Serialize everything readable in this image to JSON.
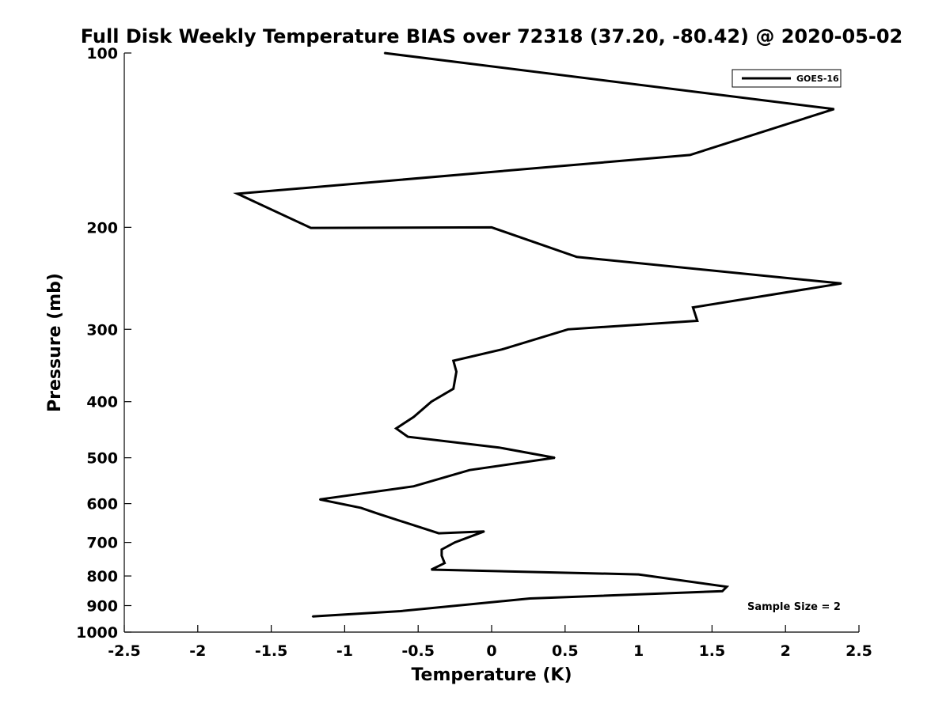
{
  "chart_data": {
    "type": "line",
    "title": "Full Disk Weekly Temperature BIAS over 72318 (37.20, -80.42) @ 2020-05-02",
    "xlabel": "Temperature (K)",
    "ylabel": "Pressure (mb)",
    "xlim": [
      -2.5,
      2.5
    ],
    "ylim": [
      1000,
      100
    ],
    "yscale": "log",
    "y_reversed": true,
    "xticks": [
      -2.5,
      -2,
      -1.5,
      -1,
      -0.5,
      0,
      0.5,
      1,
      1.5,
      2,
      2.5
    ],
    "xtick_labels": [
      "-2.5",
      "-2",
      "-1.5",
      "-1",
      "-0.5",
      "0",
      "0.5",
      "1",
      "1.5",
      "2",
      "2.5"
    ],
    "yticks": [
      100,
      200,
      300,
      400,
      500,
      600,
      700,
      800,
      900,
      1000
    ],
    "ytick_labels": [
      "100",
      "200",
      "300",
      "400",
      "500",
      "600",
      "700",
      "800",
      "900",
      "1000"
    ],
    "grid": false,
    "legend_position": "top-right",
    "series": [
      {
        "name": "GOES-16",
        "color": "#000000",
        "points": [
          [
            -0.73,
            100
          ],
          [
            2.33,
            125
          ],
          [
            1.35,
            150
          ],
          [
            -1.73,
            175
          ],
          [
            -1.23,
            200.5
          ],
          [
            0.0,
            200
          ],
          [
            0.58,
            225
          ],
          [
            2.38,
            250
          ],
          [
            1.37,
            275
          ],
          [
            1.4,
            290
          ],
          [
            0.52,
            300
          ],
          [
            0.07,
            325
          ],
          [
            -0.26,
            340
          ],
          [
            -0.24,
            355
          ],
          [
            -0.26,
            380
          ],
          [
            -0.41,
            400
          ],
          [
            -0.53,
            425
          ],
          [
            -0.65,
            445
          ],
          [
            -0.57,
            460
          ],
          [
            0.05,
            480
          ],
          [
            0.43,
            500
          ],
          [
            -0.15,
            525
          ],
          [
            -0.53,
            560
          ],
          [
            -1.17,
            590
          ],
          [
            -0.89,
            610
          ],
          [
            -0.77,
            625
          ],
          [
            -0.36,
            675
          ],
          [
            -0.05,
            670
          ],
          [
            -0.25,
            700
          ],
          [
            -0.34,
            720
          ],
          [
            -0.34,
            738
          ],
          [
            -0.32,
            760
          ],
          [
            -0.41,
            780
          ],
          [
            1.0,
            795
          ],
          [
            1.6,
            835
          ],
          [
            1.57,
            850
          ],
          [
            0.26,
            875
          ],
          [
            -0.62,
            920
          ],
          [
            -1.22,
            940
          ]
        ]
      }
    ],
    "annotations": [
      {
        "text": "Sample Size = 2",
        "position": "bottom-right"
      }
    ]
  }
}
